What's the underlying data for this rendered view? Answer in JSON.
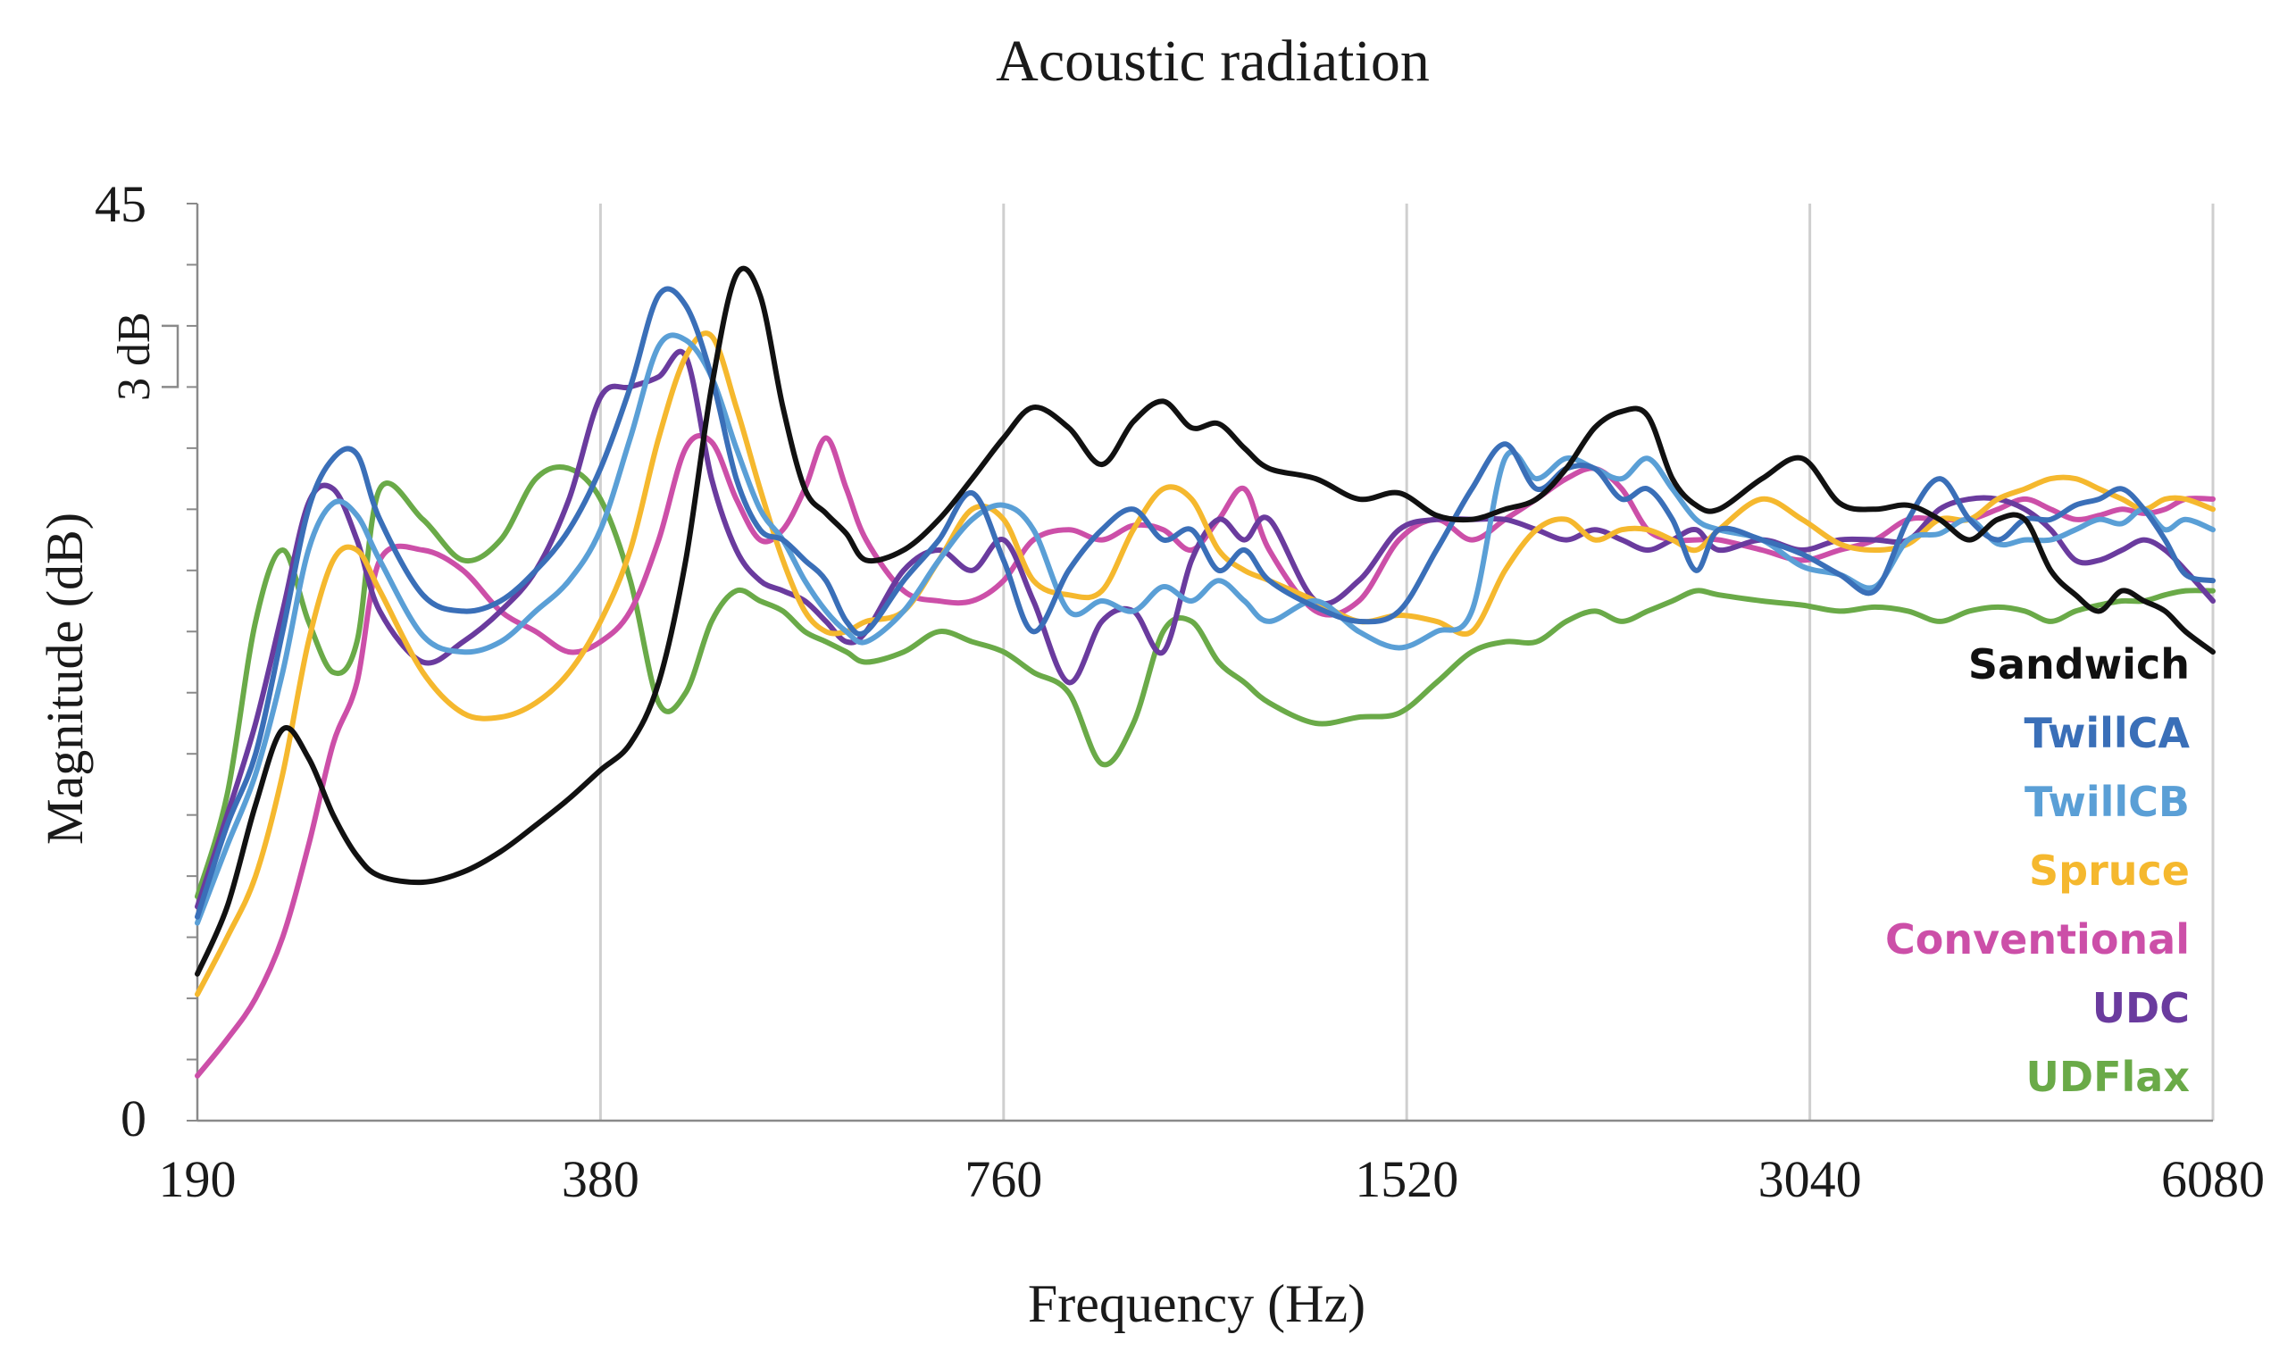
{
  "chart_data": {
    "type": "line",
    "title": "Acoustic radiation",
    "xlabel": "Frequency (Hz)",
    "ylabel": "Magnitude (dB)",
    "x_scale": "log2",
    "xlim": [
      190,
      6080
    ],
    "ylim": [
      0,
      45
    ],
    "xticks": [
      "190",
      "380",
      "760",
      "1520",
      "3040",
      "6080"
    ],
    "xtick_values": [
      190,
      380,
      760,
      1520,
      3040,
      6080
    ],
    "yticks": [
      "0",
      "45"
    ],
    "ytick_values": [
      0,
      45
    ],
    "scale_bar": {
      "label": "3 dB",
      "from": 36,
      "to": 39
    },
    "grid": "vertical",
    "legend_position": "right",
    "x": [
      190,
      200,
      210,
      220,
      230,
      240,
      250,
      260,
      280,
      300,
      320,
      340,
      360,
      380,
      400,
      420,
      440,
      460,
      480,
      500,
      520,
      540,
      560,
      580,
      600,
      640,
      680,
      720,
      760,
      800,
      850,
      900,
      950,
      1000,
      1050,
      1100,
      1150,
      1200,
      1300,
      1400,
      1500,
      1600,
      1700,
      1800,
      1900,
      2000,
      2100,
      2200,
      2300,
      2400,
      2500,
      2600,
      2800,
      3000,
      3200,
      3400,
      3600,
      3800,
      4000,
      4200,
      4400,
      4600,
      4800,
      5000,
      5200,
      5400,
      5600,
      5800,
      6080
    ],
    "series": [
      {
        "name": "Sandwich",
        "color": "#111111",
        "values": [
          7.2,
          10.5,
          15.5,
          19.2,
          17.8,
          15.0,
          13.0,
          12.0,
          11.7,
          12.2,
          13.2,
          14.5,
          15.8,
          17.2,
          18.5,
          21.5,
          27.5,
          36.0,
          41.5,
          40.5,
          35.0,
          31.0,
          29.8,
          28.8,
          27.5,
          28.0,
          29.5,
          31.5,
          33.5,
          35.0,
          34.0,
          32.2,
          34.3,
          35.3,
          34.0,
          34.2,
          33.0,
          32.0,
          31.5,
          30.5,
          30.8,
          29.7,
          29.5,
          30.0,
          30.5,
          32.0,
          34.0,
          34.8,
          34.6,
          31.5,
          30.2,
          30.0,
          31.5,
          32.5,
          30.3,
          30.0,
          30.2,
          29.5,
          28.5,
          29.5,
          29.5,
          27.0,
          25.8,
          25.0,
          26.0,
          25.5,
          25.0,
          24.0,
          23.0
        ]
      },
      {
        "name": "TwillCA",
        "color": "#3a6fb8",
        "values": [
          10.0,
          14.5,
          18.0,
          24.0,
          30.0,
          32.5,
          32.7,
          29.5,
          25.8,
          25.0,
          25.5,
          27.0,
          29.0,
          32.0,
          36.0,
          40.5,
          40.0,
          36.5,
          31.5,
          29.0,
          28.5,
          27.5,
          26.5,
          24.5,
          24.0,
          26.5,
          28.5,
          30.8,
          27.5,
          24.0,
          27.0,
          29.0,
          30.0,
          28.5,
          29.0,
          27.0,
          28.0,
          26.5,
          25.2,
          24.5,
          25.0,
          28.0,
          31.0,
          33.2,
          31.0,
          32.0,
          32.0,
          30.5,
          31.0,
          29.5,
          27.0,
          29.0,
          28.5,
          27.8,
          26.8,
          26.0,
          29.5,
          31.5,
          29.5,
          28.5,
          29.5,
          29.5,
          30.2,
          30.5,
          31.0,
          30.0,
          28.5,
          26.8,
          26.5
        ]
      },
      {
        "name": "TwillCB",
        "color": "#5a9fd6",
        "values": [
          9.7,
          13.5,
          17.0,
          22.0,
          28.0,
          30.3,
          29.7,
          27.5,
          23.8,
          23.0,
          23.5,
          25.0,
          26.5,
          29.0,
          33.5,
          38.0,
          38.3,
          36.5,
          33.0,
          30.0,
          28.5,
          26.5,
          25.0,
          24.0,
          23.5,
          25.0,
          27.5,
          29.5,
          30.2,
          29.0,
          25.0,
          25.5,
          25.0,
          26.2,
          25.5,
          26.5,
          25.5,
          24.5,
          25.5,
          24.0,
          23.2,
          24.0,
          25.0,
          32.5,
          31.5,
          32.5,
          32.0,
          31.5,
          32.5,
          31.0,
          29.5,
          29.0,
          28.5,
          27.2,
          26.8,
          26.2,
          28.5,
          28.8,
          29.5,
          28.3,
          28.5,
          28.5,
          29.0,
          29.5,
          29.3,
          30.0,
          29.0,
          29.5,
          29.0
        ]
      },
      {
        "name": "Spruce",
        "color": "#f5b82e",
        "values": [
          6.2,
          9.0,
          12.0,
          17.0,
          23.5,
          27.5,
          28.0,
          26.0,
          22.0,
          20.0,
          19.8,
          20.5,
          22.0,
          24.5,
          28.0,
          33.5,
          37.5,
          38.5,
          35.0,
          31.0,
          27.5,
          25.0,
          24.0,
          24.0,
          24.5,
          25.0,
          27.5,
          30.0,
          29.5,
          26.5,
          25.8,
          26.0,
          29.0,
          31.0,
          30.5,
          28.0,
          27.0,
          26.5,
          25.5,
          24.5,
          24.8,
          24.5,
          24.0,
          27.0,
          29.0,
          29.5,
          28.5,
          29.0,
          29.0,
          28.5,
          28.0,
          29.0,
          30.5,
          29.5,
          28.3,
          28.0,
          28.3,
          29.5,
          29.5,
          30.5,
          31.0,
          31.5,
          31.5,
          31.0,
          30.5,
          30.0,
          30.5,
          30.5,
          30.0
        ]
      },
      {
        "name": "Conventional",
        "color": "#cc4fa8",
        "values": [
          2.2,
          4.0,
          6.0,
          9.0,
          13.5,
          18.5,
          21.5,
          27.5,
          28.0,
          27.0,
          25.0,
          24.0,
          23.0,
          23.5,
          25.0,
          28.5,
          33.0,
          33.3,
          30.5,
          28.5,
          29.0,
          31.0,
          33.5,
          31.0,
          28.5,
          26.0,
          25.5,
          25.5,
          26.5,
          28.5,
          29.0,
          28.5,
          29.2,
          29.0,
          28.0,
          29.5,
          31.0,
          28.0,
          25.0,
          25.5,
          28.5,
          29.5,
          28.5,
          29.5,
          30.5,
          31.5,
          32.0,
          31.0,
          29.0,
          28.5,
          28.5,
          28.5,
          28.0,
          27.5,
          28.0,
          28.5,
          29.5,
          29.5,
          29.5,
          30.0,
          30.5,
          30.0,
          29.5,
          29.7,
          30.0,
          29.8,
          30.0,
          30.5,
          30.5
        ]
      },
      {
        "name": "UDC",
        "color": "#6a3b9e",
        "values": [
          10.5,
          15.0,
          19.5,
          25.0,
          30.3,
          31.0,
          28.5,
          25.0,
          22.5,
          23.5,
          25.0,
          27.0,
          30.5,
          35.5,
          36.0,
          36.5,
          37.5,
          31.5,
          28.0,
          26.5,
          26.0,
          25.5,
          24.5,
          23.5,
          24.0,
          27.0,
          28.0,
          27.0,
          28.5,
          25.5,
          21.5,
          24.5,
          25.0,
          23.0,
          27.5,
          29.5,
          28.5,
          29.5,
          25.5,
          26.5,
          29.0,
          29.5,
          29.5,
          29.5,
          29.0,
          28.5,
          29.0,
          28.5,
          28.0,
          28.5,
          29.0,
          28.0,
          28.5,
          28.0,
          28.5,
          28.5,
          28.5,
          30.0,
          30.5,
          30.5,
          30.0,
          29.0,
          27.5,
          27.5,
          28.0,
          28.5,
          28.0,
          27.0,
          25.5
        ]
      },
      {
        "name": "UDFlax",
        "color": "#6aaa48",
        "values": [
          11.0,
          16.0,
          24.5,
          28.0,
          24.5,
          22.0,
          23.5,
          31.0,
          29.5,
          27.5,
          28.5,
          31.5,
          32.0,
          30.5,
          26.5,
          20.5,
          21.0,
          24.5,
          26.0,
          25.5,
          25.0,
          24.0,
          23.5,
          23.0,
          22.5,
          23.0,
          24.0,
          23.5,
          23.0,
          22.0,
          21.0,
          17.5,
          19.5,
          24.0,
          24.5,
          22.5,
          21.5,
          20.5,
          19.5,
          19.8,
          20.0,
          21.5,
          23.0,
          23.5,
          23.5,
          24.5,
          25.0,
          24.5,
          25.0,
          25.5,
          26.0,
          25.8,
          25.5,
          25.3,
          25.0,
          25.2,
          25.0,
          24.5,
          25.0,
          25.2,
          25.0,
          24.5,
          25.0,
          25.3,
          25.5,
          25.5,
          25.8,
          26.0,
          26.0
        ]
      }
    ]
  }
}
